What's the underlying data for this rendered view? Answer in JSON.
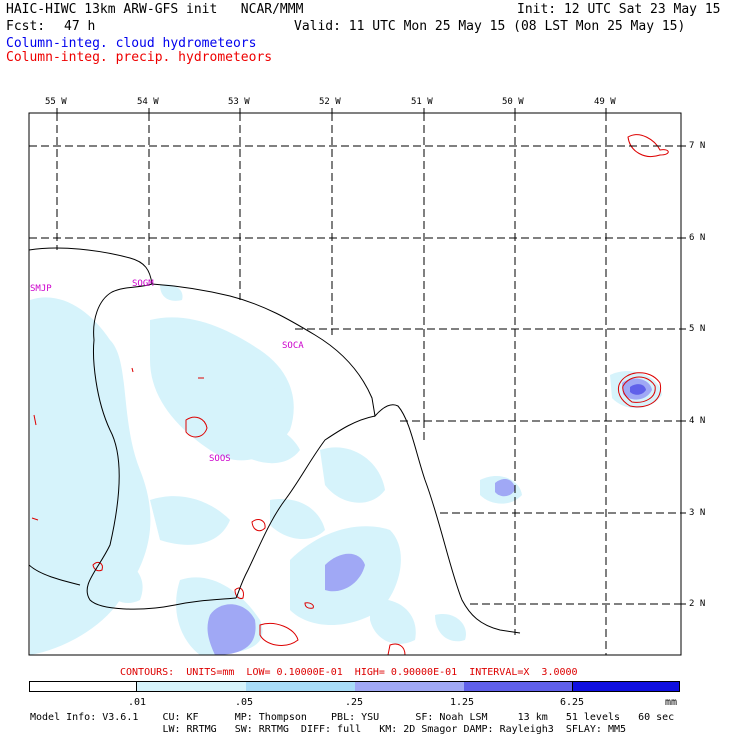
{
  "header": {
    "title_left": "HAIC-HIWC 13km ARW-GFS init   NCAR/MMM",
    "fcst_label": "Fcst:",
    "fcst_value": "47 h",
    "init": "Init: 12 UTC Sat 23 May 15",
    "valid": "Valid: 11 UTC Mon 25 May 15 (08 LST Mon 25 May 15)",
    "legend_cloud": "Column-integ. cloud hydrometeors",
    "legend_precip": "Column-integ. precip. hydrometeors"
  },
  "colors": {
    "cloud_text": "#0000ee",
    "precip_text": "#ee0000",
    "contour": "#dd0000",
    "shade_low": "#d6f3fb",
    "shade_mid": "#a0a8f5",
    "shade_high": "#6060ea"
  },
  "map": {
    "lon_labels": [
      "55 W",
      "54 W",
      "53 W",
      "52 W",
      "51 W",
      "50 W",
      "49 W"
    ],
    "lat_labels": [
      "7 N",
      "6 N",
      "5 N",
      "4 N",
      "3 N",
      "2 N"
    ],
    "stations": [
      "SMJP",
      "SOGM",
      "SOCA",
      "SOOS"
    ]
  },
  "footer": {
    "contours": "CONTOURS:  UNITS=mm  LOW= 0.10000E-01  HIGH= 0.90000E-01  INTERVAL=X  3.0000",
    "colorbar_labels": [
      ".01",
      ".05",
      ".25",
      "1.25",
      "6.25"
    ],
    "colorbar_unit": "mm",
    "colorbar_colors": [
      "#ffffff",
      "#d6f3fb",
      "#a8dcf8",
      "#a0a8f5",
      "#6060ea",
      "#2020e0"
    ],
    "model_line1": "Model Info: V3.6.1    CU: KF      MP: Thompson    PBL: YSU      SF: Noah LSM     13 km   51 levels   60 sec",
    "model_line2": "                      LW: RRTMG   SW: RRTMG  DIFF: full   KM: 2D Smagor DAMP: Rayleigh3  SFLAY: MM5"
  }
}
